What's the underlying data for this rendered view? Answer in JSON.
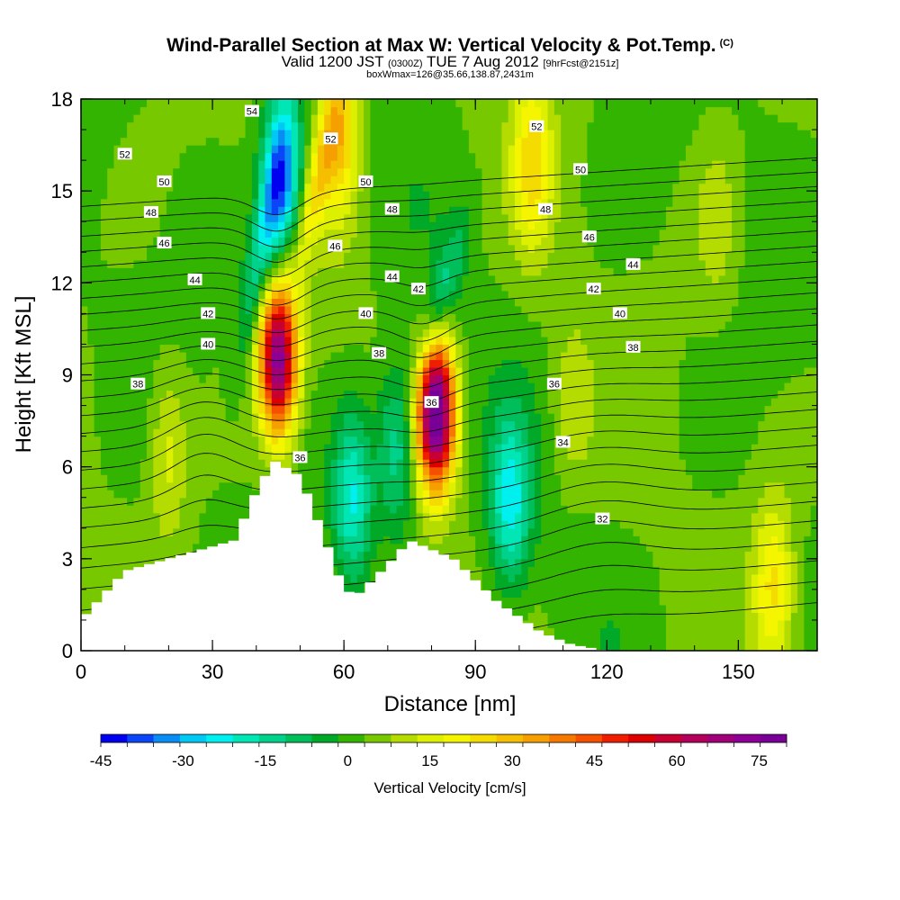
{
  "title": {
    "main": "Wind-Parallel Section at Max W: Vertical Velocity & Pot.Temp.",
    "mark": "(C)",
    "valid_pre": "Valid 1200 JST",
    "valid_zulu": "(0300Z)",
    "valid_post": "TUE 7 Aug 2012",
    "forecast": "[9hrFcst@2151z]",
    "box": "boxWmax=126@35.66,138.87,2431m"
  },
  "chart_data": {
    "type": "heatmap",
    "xlabel": "Distance [nm]",
    "ylabel": "Height [Kft MSL]",
    "xlim": [
      0,
      168
    ],
    "ylim": [
      0,
      18
    ],
    "x_ticks": [
      "0",
      "30",
      "60",
      "90",
      "120",
      "150"
    ],
    "y_ticks": [
      "0",
      "3",
      "6",
      "9",
      "12",
      "15",
      "18"
    ],
    "colorbar": {
      "title": "Vertical Velocity [cm/s]",
      "range": [
        -45,
        80
      ],
      "tick_labels": [
        "-45",
        "-30",
        "-15",
        "0",
        "15",
        "30",
        "45",
        "60",
        "75"
      ],
      "colors": [
        "#0000f0",
        "#0a46f5",
        "#0a8cf5",
        "#00c8f5",
        "#00f0f0",
        "#00e6b4",
        "#00d28c",
        "#00be5a",
        "#00aa28",
        "#32b400",
        "#78c800",
        "#b4dc00",
        "#dcf000",
        "#f5f500",
        "#f5dc00",
        "#f5be00",
        "#f5a000",
        "#f57800",
        "#f55000",
        "#f01e00",
        "#dc0000",
        "#c80032",
        "#b4005a",
        "#a00078",
        "#8c0096",
        "#780096"
      ]
    },
    "terrain_height_kft": [
      {
        "x": 0,
        "h": 1.0
      },
      {
        "x": 10,
        "h": 2.6
      },
      {
        "x": 20,
        "h": 3.0
      },
      {
        "x": 35,
        "h": 3.6
      },
      {
        "x": 40,
        "h": 5.2
      },
      {
        "x": 44,
        "h": 6.2
      },
      {
        "x": 50,
        "h": 5.7
      },
      {
        "x": 55,
        "h": 3.9
      },
      {
        "x": 60,
        "h": 2.0
      },
      {
        "x": 63,
        "h": 1.8
      },
      {
        "x": 70,
        "h": 2.8
      },
      {
        "x": 75,
        "h": 3.6
      },
      {
        "x": 85,
        "h": 3.0
      },
      {
        "x": 95,
        "h": 1.6
      },
      {
        "x": 105,
        "h": 0.6
      },
      {
        "x": 112,
        "h": 0.2
      },
      {
        "x": 120,
        "h": 0.0
      },
      {
        "x": 168,
        "h": 0.0
      }
    ],
    "velocity_features": [
      {
        "name": "updraft",
        "x": 45,
        "y": 9.5,
        "peak": 70
      },
      {
        "name": "downdraft",
        "x": 46,
        "y": 15.5,
        "peak": -35
      },
      {
        "name": "updraft",
        "x": 81,
        "y": 7.8,
        "peak": 80
      },
      {
        "name": "downdraft",
        "x": 62,
        "y": 5.0,
        "peak": -25
      },
      {
        "name": "downdraft",
        "x": 98,
        "y": 4.8,
        "peak": -25
      },
      {
        "name": "downdraft",
        "x": 72,
        "y": 6.5,
        "peak": -20
      },
      {
        "name": "updraft",
        "x": 59,
        "y": 17.0,
        "peak": 25
      },
      {
        "name": "updraft",
        "x": 103,
        "y": 16.0,
        "peak": 20
      },
      {
        "name": "updraft",
        "x": 158,
        "y": 2.0,
        "peak": 20
      },
      {
        "name": "updraft",
        "x": 20,
        "y": 6.5,
        "peak": 12
      },
      {
        "name": "updraft",
        "x": 112,
        "y": 8.0,
        "peak": 8
      },
      {
        "name": "updraft",
        "x": 145,
        "y": 14.0,
        "peak": 8
      }
    ],
    "potential_temperature_labels": [
      {
        "x": 10,
        "y": 16.2,
        "label": "52"
      },
      {
        "x": 19,
        "y": 15.3,
        "label": "50"
      },
      {
        "x": 16,
        "y": 14.3,
        "label": "48"
      },
      {
        "x": 19,
        "y": 13.3,
        "label": "46"
      },
      {
        "x": 26,
        "y": 12.1,
        "label": "44"
      },
      {
        "x": 29,
        "y": 11.0,
        "label": "42"
      },
      {
        "x": 29,
        "y": 10.0,
        "label": "40"
      },
      {
        "x": 13,
        "y": 8.7,
        "label": "38"
      },
      {
        "x": 39,
        "y": 17.6,
        "label": "54"
      },
      {
        "x": 57,
        "y": 16.7,
        "label": "52"
      },
      {
        "x": 65,
        "y": 15.3,
        "label": "50"
      },
      {
        "x": 71,
        "y": 14.4,
        "label": "48"
      },
      {
        "x": 58,
        "y": 13.2,
        "label": "46"
      },
      {
        "x": 71,
        "y": 12.2,
        "label": "44"
      },
      {
        "x": 77,
        "y": 11.8,
        "label": "42"
      },
      {
        "x": 65,
        "y": 11.0,
        "label": "40"
      },
      {
        "x": 68,
        "y": 9.7,
        "label": "38"
      },
      {
        "x": 80,
        "y": 8.1,
        "label": "36"
      },
      {
        "x": 50,
        "y": 6.3,
        "label": "36"
      },
      {
        "x": 104,
        "y": 17.1,
        "label": "52"
      },
      {
        "x": 114,
        "y": 15.7,
        "label": "50"
      },
      {
        "x": 106,
        "y": 14.4,
        "label": "48"
      },
      {
        "x": 116,
        "y": 13.5,
        "label": "46"
      },
      {
        "x": 126,
        "y": 12.6,
        "label": "44"
      },
      {
        "x": 117,
        "y": 11.8,
        "label": "42"
      },
      {
        "x": 123,
        "y": 11.0,
        "label": "40"
      },
      {
        "x": 126,
        "y": 9.9,
        "label": "38"
      },
      {
        "x": 108,
        "y": 8.7,
        "label": "36"
      },
      {
        "x": 110,
        "y": 6.8,
        "label": "34"
      },
      {
        "x": 119,
        "y": 4.3,
        "label": "32"
      }
    ]
  }
}
